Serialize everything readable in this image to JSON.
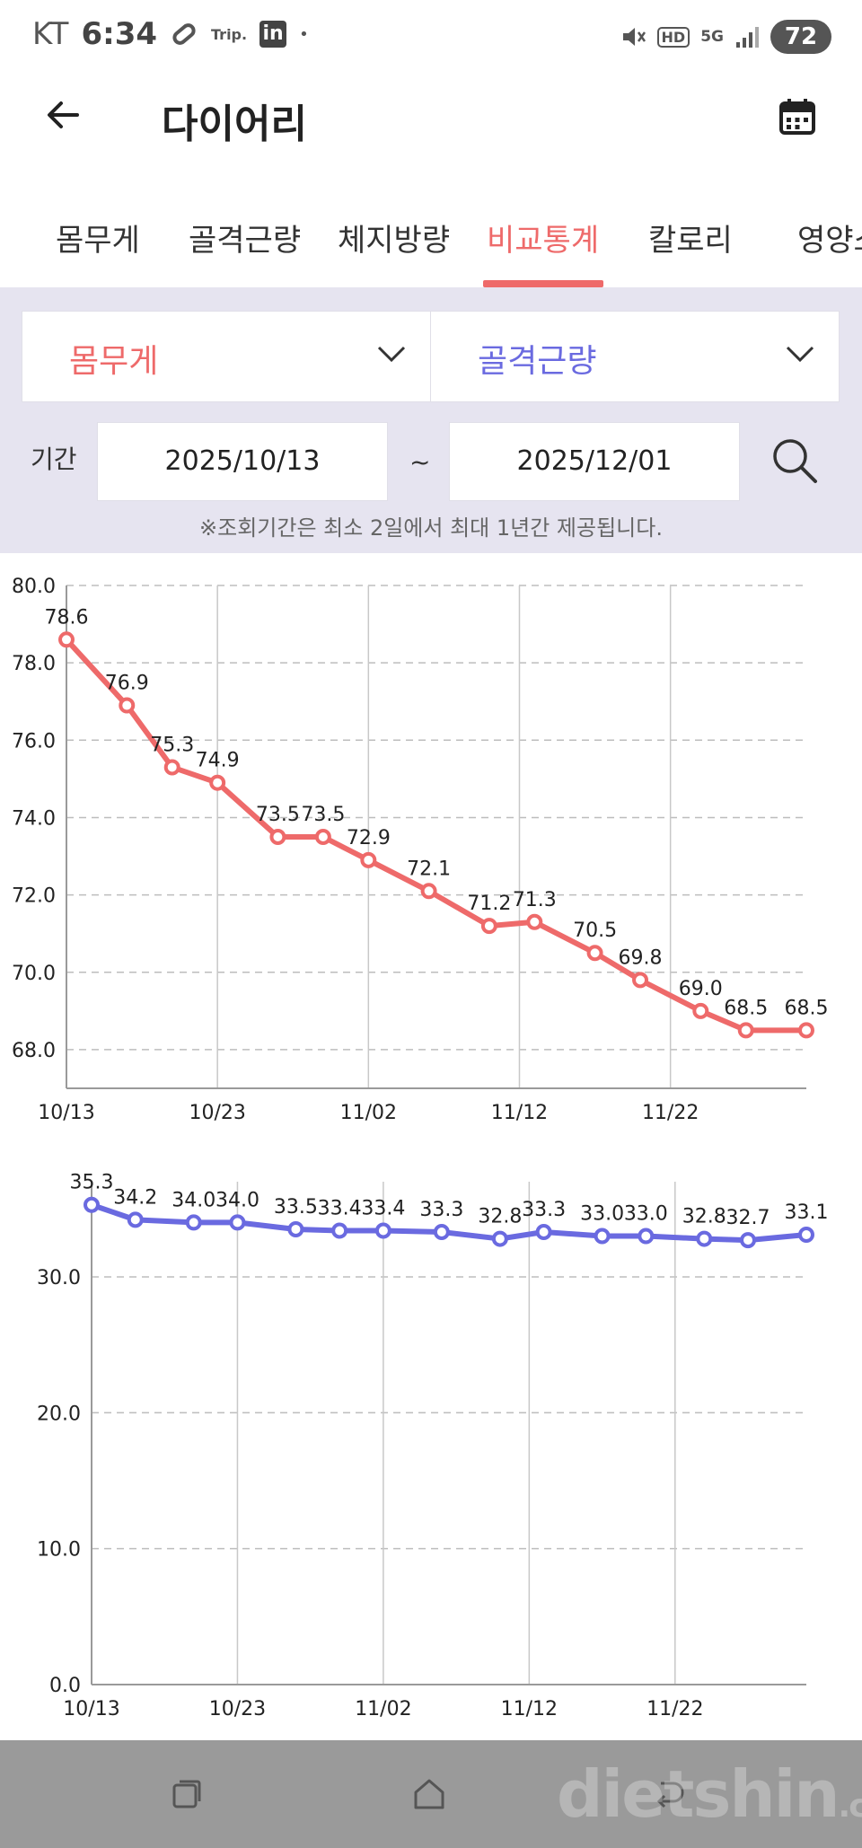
{
  "status": {
    "carrier": "KT",
    "time": "6:34",
    "trip_label": "Trip.",
    "linkedin_label": "in",
    "dot": "•",
    "network": "5G",
    "hd": "HD",
    "battery": "72"
  },
  "app": {
    "title": "다이어리"
  },
  "tabs": [
    "몸무게",
    "골격근량",
    "체지방량",
    "비교통계",
    "칼로리",
    "영양소"
  ],
  "active_tab": "비교통계",
  "filter": {
    "left_select": "몸무게",
    "right_select": "골격근량",
    "period_label": "기간",
    "start_date": "2025/10/13",
    "end_date": "2025/12/01",
    "tilde": "~",
    "notice": "※조회기간은 최소 2일에서 최대 1년간 제공됩니다."
  },
  "colors": {
    "accent_red": "#ee6a6a",
    "accent_blue": "#6a6ae0",
    "filter_bg": "#e6e4f0"
  },
  "watermark": {
    "main": "dietshin",
    "suffix": ".com"
  },
  "chart_data": [
    {
      "type": "line",
      "series": [
        {
          "x": [
            "2025-10-13",
            "2025-10-17",
            "2025-10-20",
            "2025-10-23",
            "2025-10-27",
            "2025-10-30",
            "2025-11-02",
            "2025-11-06",
            "2025-11-10",
            "2025-11-13",
            "2025-11-17",
            "2025-11-20",
            "2025-11-24",
            "2025-11-27",
            "2025-12-01"
          ],
          "values": [
            78.6,
            76.9,
            75.3,
            74.9,
            73.5,
            73.5,
            72.9,
            72.1,
            71.2,
            71.3,
            70.5,
            69.8,
            69.0,
            68.5,
            68.5
          ]
        }
      ],
      "x_ticks": [
        "10/13",
        "10/23",
        "11/02",
        "11/12",
        "11/22"
      ],
      "y_ticks": [
        "68.0",
        "70.0",
        "72.0",
        "74.0",
        "76.0",
        "78.0",
        "80.0"
      ],
      "ylim": [
        67.0,
        80.0
      ],
      "grid": true,
      "color": "#ee6a6a"
    },
    {
      "type": "line",
      "series": [
        {
          "x": [
            "2025-10-13",
            "2025-10-16",
            "2025-10-20",
            "2025-10-23",
            "2025-10-27",
            "2025-10-30",
            "2025-11-02",
            "2025-11-06",
            "2025-11-10",
            "2025-11-13",
            "2025-11-17",
            "2025-11-20",
            "2025-11-24",
            "2025-11-27",
            "2025-12-01"
          ],
          "values": [
            35.3,
            34.2,
            34.0,
            34.0,
            33.5,
            33.4,
            33.4,
            33.3,
            32.8,
            33.3,
            33.0,
            33.0,
            32.8,
            32.7,
            33.1
          ]
        }
      ],
      "x_ticks": [
        "10/13",
        "10/23",
        "11/02",
        "11/12",
        "11/22"
      ],
      "y_ticks": [
        "0.0",
        "10.0",
        "20.0",
        "30.0"
      ],
      "ylim": [
        0,
        37
      ],
      "grid": true,
      "color": "#6a6ae0"
    }
  ]
}
